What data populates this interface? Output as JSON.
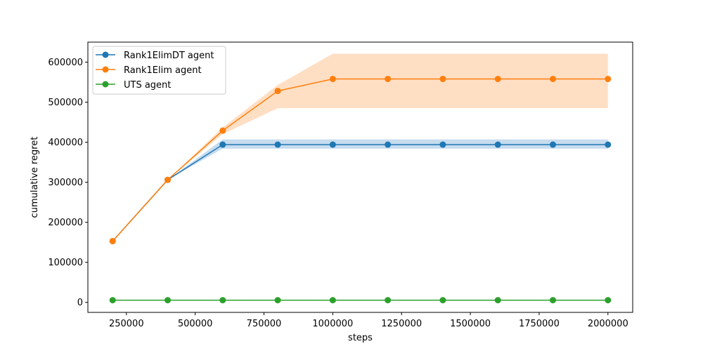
{
  "chart_data": {
    "type": "line",
    "title": "",
    "xlabel": "steps",
    "ylabel": "cumulative regret",
    "x": [
      200000,
      400000,
      600000,
      800000,
      1000000,
      1200000,
      1400000,
      1600000,
      1800000,
      2000000
    ],
    "xlim": [
      110000,
      2090000
    ],
    "ylim": [
      -25000,
      650000
    ],
    "xticks": [
      250000,
      500000,
      750000,
      1000000,
      1250000,
      1500000,
      1750000,
      2000000
    ],
    "yticks": [
      0,
      100000,
      200000,
      300000,
      400000,
      500000,
      600000
    ],
    "xtick_labels": [
      "250000",
      "500000",
      "750000",
      "1000000",
      "1250000",
      "1500000",
      "1750000",
      "2000000"
    ],
    "ytick_labels": [
      "0",
      "100000",
      "200000",
      "300000",
      "400000",
      "500000",
      "600000"
    ],
    "grid": false,
    "legend_position": "top-left",
    "series": [
      {
        "name": "Rank1ElimDT agent",
        "color": "#1f77b4",
        "band_color": "#c6dcef",
        "values": [
          153000,
          306000,
          394000,
          394000,
          394000,
          394000,
          394000,
          394000,
          394000,
          394000
        ],
        "lower": [
          153000,
          306000,
          384000,
          384000,
          384000,
          384000,
          384000,
          384000,
          384000,
          384000
        ],
        "upper": [
          153000,
          306000,
          407000,
          407000,
          407000,
          407000,
          407000,
          407000,
          407000,
          407000
        ]
      },
      {
        "name": "Rank1Elim agent",
        "color": "#ff7f0e",
        "band_color": "#ffdfc4",
        "values": [
          153000,
          306000,
          429000,
          528000,
          558000,
          558000,
          558000,
          558000,
          558000,
          558000
        ],
        "lower": [
          153000,
          306000,
          420000,
          485000,
          485000,
          485000,
          485000,
          485000,
          485000,
          485000
        ],
        "upper": [
          153000,
          306000,
          437000,
          543000,
          621000,
          621000,
          621000,
          621000,
          621000,
          621000
        ]
      },
      {
        "name": "UTS agent",
        "color": "#2ca02c",
        "band_color": "#c9e7c9",
        "values": [
          5500,
          5500,
          5500,
          5500,
          5500,
          5500,
          5500,
          5500,
          5500,
          5500
        ],
        "lower": [
          5000,
          5000,
          5000,
          5000,
          5000,
          5000,
          5000,
          5000,
          5000,
          5000
        ],
        "upper": [
          6000,
          6000,
          6000,
          6000,
          6000,
          6000,
          6000,
          6000,
          6000,
          6000
        ]
      }
    ]
  }
}
